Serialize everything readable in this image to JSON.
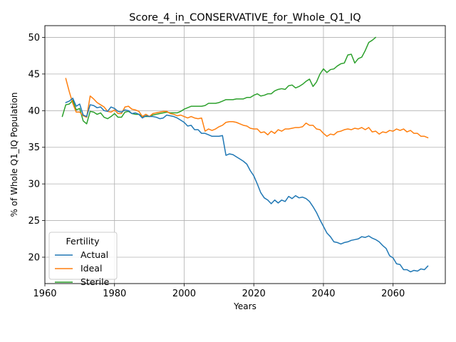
{
  "chart_data": {
    "type": "line",
    "title": "Score_4_in_CONSERVATIVE_for_Whole_Q1_IQ",
    "xlabel": "Years",
    "ylabel": "% of Whole Q1_IQ Population",
    "xlim": [
      1960,
      2075
    ],
    "ylim": [
      16.4,
      51.6
    ],
    "xticks": [
      1960,
      1980,
      2000,
      2020,
      2040,
      2060
    ],
    "yticks": [
      20,
      25,
      30,
      35,
      40,
      45,
      50
    ],
    "grid": true,
    "legend": {
      "title": "Fertility",
      "placement": "lower-left"
    },
    "series": [
      {
        "name": "Actual",
        "color": "#1f77b4",
        "points": [
          [
            1966,
            41.1
          ],
          [
            1967,
            41.3
          ],
          [
            1968,
            41.7
          ],
          [
            1969,
            40.6
          ],
          [
            1970,
            40.9
          ],
          [
            1971,
            39.4
          ],
          [
            1972,
            39.2
          ],
          [
            1973,
            40.8
          ],
          [
            1974,
            40.7
          ],
          [
            1975,
            40.4
          ],
          [
            1976,
            40.5
          ],
          [
            1977,
            40.0
          ],
          [
            1978,
            39.9
          ],
          [
            1979,
            40.5
          ],
          [
            1980,
            40.3
          ],
          [
            1981,
            39.9
          ],
          [
            1982,
            39.8
          ],
          [
            1983,
            40.1
          ],
          [
            1984,
            40.0
          ],
          [
            1985,
            39.6
          ],
          [
            1986,
            39.7
          ],
          [
            1987,
            39.5
          ],
          [
            1988,
            39.0
          ],
          [
            1989,
            39.3
          ],
          [
            1990,
            39.2
          ],
          [
            1991,
            39.2
          ],
          [
            1992,
            39.1
          ],
          [
            1993,
            38.9
          ],
          [
            1994,
            39.0
          ],
          [
            1995,
            39.4
          ],
          [
            1996,
            39.3
          ],
          [
            1997,
            39.2
          ],
          [
            1998,
            39.0
          ],
          [
            1999,
            38.7
          ],
          [
            2000,
            38.4
          ],
          [
            2001,
            37.9
          ],
          [
            2002,
            38.0
          ],
          [
            2003,
            37.4
          ],
          [
            2004,
            37.4
          ],
          [
            2005,
            36.9
          ],
          [
            2006,
            36.9
          ],
          [
            2007,
            36.7
          ],
          [
            2008,
            36.5
          ],
          [
            2009,
            36.5
          ],
          [
            2010,
            36.5
          ],
          [
            2011,
            36.6
          ],
          [
            2012,
            33.9
          ],
          [
            2013,
            34.1
          ],
          [
            2014,
            34.0
          ],
          [
            2015,
            33.7
          ],
          [
            2016,
            33.4
          ],
          [
            2017,
            33.1
          ],
          [
            2018,
            32.7
          ],
          [
            2019,
            31.8
          ],
          [
            2020,
            31.1
          ],
          [
            2021,
            30.0
          ],
          [
            2022,
            28.8
          ],
          [
            2023,
            28.1
          ],
          [
            2024,
            27.8
          ],
          [
            2025,
            27.3
          ],
          [
            2026,
            27.8
          ],
          [
            2027,
            27.4
          ],
          [
            2028,
            27.8
          ],
          [
            2029,
            27.6
          ],
          [
            2030,
            28.3
          ],
          [
            2031,
            28.0
          ],
          [
            2032,
            28.4
          ],
          [
            2033,
            28.1
          ],
          [
            2034,
            28.2
          ],
          [
            2035,
            28.0
          ],
          [
            2036,
            27.6
          ],
          [
            2037,
            26.9
          ],
          [
            2038,
            26.1
          ],
          [
            2039,
            25.1
          ],
          [
            2040,
            24.2
          ],
          [
            2041,
            23.3
          ],
          [
            2042,
            22.8
          ],
          [
            2043,
            22.1
          ],
          [
            2044,
            22.0
          ],
          [
            2045,
            21.8
          ],
          [
            2046,
            22.0
          ],
          [
            2047,
            22.1
          ],
          [
            2048,
            22.3
          ],
          [
            2049,
            22.4
          ],
          [
            2050,
            22.5
          ],
          [
            2051,
            22.8
          ],
          [
            2052,
            22.7
          ],
          [
            2053,
            22.9
          ],
          [
            2054,
            22.6
          ],
          [
            2055,
            22.4
          ],
          [
            2056,
            22.1
          ],
          [
            2057,
            21.6
          ],
          [
            2058,
            21.2
          ],
          [
            2059,
            20.2
          ],
          [
            2060,
            19.9
          ],
          [
            2061,
            19.1
          ],
          [
            2062,
            19.0
          ],
          [
            2063,
            18.3
          ],
          [
            2064,
            18.3
          ],
          [
            2065,
            18.0
          ],
          [
            2066,
            18.2
          ],
          [
            2067,
            18.1
          ],
          [
            2068,
            18.4
          ],
          [
            2069,
            18.3
          ],
          [
            2070,
            18.8
          ]
        ]
      },
      {
        "name": "Ideal",
        "color": "#ff7f0e",
        "points": [
          [
            1966,
            44.4
          ],
          [
            1967,
            42.6
          ],
          [
            1968,
            41.0
          ],
          [
            1969,
            39.8
          ],
          [
            1970,
            39.8
          ],
          [
            1971,
            39.3
          ],
          [
            1972,
            39.1
          ],
          [
            1973,
            42.0
          ],
          [
            1974,
            41.6
          ],
          [
            1975,
            41.1
          ],
          [
            1976,
            40.8
          ],
          [
            1977,
            40.5
          ],
          [
            1978,
            39.9
          ],
          [
            1979,
            39.8
          ],
          [
            1980,
            40.1
          ],
          [
            1981,
            39.6
          ],
          [
            1982,
            39.6
          ],
          [
            1983,
            40.5
          ],
          [
            1984,
            40.6
          ],
          [
            1985,
            40.2
          ],
          [
            1986,
            40.1
          ],
          [
            1987,
            39.9
          ],
          [
            1988,
            39.2
          ],
          [
            1989,
            39.5
          ],
          [
            1990,
            39.2
          ],
          [
            1991,
            39.6
          ],
          [
            1992,
            39.7
          ],
          [
            1993,
            39.8
          ],
          [
            1994,
            39.9
          ],
          [
            1995,
            39.9
          ],
          [
            1996,
            39.6
          ],
          [
            1997,
            39.5
          ],
          [
            1998,
            39.3
          ],
          [
            1999,
            39.4
          ],
          [
            2000,
            39.2
          ],
          [
            2001,
            39.0
          ],
          [
            2002,
            39.2
          ],
          [
            2003,
            39.0
          ],
          [
            2004,
            38.9
          ],
          [
            2005,
            39.0
          ],
          [
            2006,
            37.2
          ],
          [
            2007,
            37.5
          ],
          [
            2008,
            37.3
          ],
          [
            2009,
            37.5
          ],
          [
            2010,
            37.8
          ],
          [
            2011,
            38.0
          ],
          [
            2012,
            38.4
          ],
          [
            2013,
            38.5
          ],
          [
            2014,
            38.5
          ],
          [
            2015,
            38.4
          ],
          [
            2016,
            38.2
          ],
          [
            2017,
            38.0
          ],
          [
            2018,
            37.9
          ],
          [
            2019,
            37.6
          ],
          [
            2020,
            37.5
          ],
          [
            2021,
            37.5
          ],
          [
            2022,
            37.0
          ],
          [
            2023,
            37.1
          ],
          [
            2024,
            36.7
          ],
          [
            2025,
            37.2
          ],
          [
            2026,
            36.9
          ],
          [
            2027,
            37.4
          ],
          [
            2028,
            37.2
          ],
          [
            2029,
            37.5
          ],
          [
            2030,
            37.5
          ],
          [
            2031,
            37.6
          ],
          [
            2032,
            37.7
          ],
          [
            2033,
            37.7
          ],
          [
            2034,
            37.8
          ],
          [
            2035,
            38.3
          ],
          [
            2036,
            38.0
          ],
          [
            2037,
            38.0
          ],
          [
            2038,
            37.5
          ],
          [
            2039,
            37.4
          ],
          [
            2040,
            36.9
          ],
          [
            2041,
            36.5
          ],
          [
            2042,
            36.8
          ],
          [
            2043,
            36.7
          ],
          [
            2044,
            37.1
          ],
          [
            2045,
            37.2
          ],
          [
            2046,
            37.4
          ],
          [
            2047,
            37.5
          ],
          [
            2048,
            37.4
          ],
          [
            2049,
            37.6
          ],
          [
            2050,
            37.5
          ],
          [
            2051,
            37.7
          ],
          [
            2052,
            37.4
          ],
          [
            2053,
            37.7
          ],
          [
            2054,
            37.1
          ],
          [
            2055,
            37.2
          ],
          [
            2056,
            36.8
          ],
          [
            2057,
            37.1
          ],
          [
            2058,
            37.0
          ],
          [
            2059,
            37.3
          ],
          [
            2060,
            37.2
          ],
          [
            2061,
            37.5
          ],
          [
            2062,
            37.3
          ],
          [
            2063,
            37.5
          ],
          [
            2064,
            37.1
          ],
          [
            2065,
            37.3
          ],
          [
            2066,
            36.9
          ],
          [
            2067,
            36.9
          ],
          [
            2068,
            36.5
          ],
          [
            2069,
            36.5
          ],
          [
            2070,
            36.3
          ]
        ]
      },
      {
        "name": "Sterile",
        "color": "#2ca02c",
        "points": [
          [
            1965,
            39.2
          ],
          [
            1966,
            40.8
          ],
          [
            1967,
            40.9
          ],
          [
            1968,
            41.4
          ],
          [
            1969,
            40.1
          ],
          [
            1970,
            40.3
          ],
          [
            1971,
            38.6
          ],
          [
            1972,
            38.2
          ],
          [
            1973,
            39.9
          ],
          [
            1974,
            39.8
          ],
          [
            1975,
            39.5
          ],
          [
            1976,
            39.7
          ],
          [
            1977,
            39.1
          ],
          [
            1978,
            38.9
          ],
          [
            1979,
            39.2
          ],
          [
            1980,
            39.6
          ],
          [
            1981,
            39.1
          ],
          [
            1982,
            39.1
          ],
          [
            1983,
            39.8
          ],
          [
            1984,
            39.9
          ],
          [
            1985,
            39.6
          ],
          [
            1986,
            39.5
          ],
          [
            1987,
            39.5
          ],
          [
            1988,
            39.2
          ],
          [
            1989,
            39.2
          ],
          [
            1990,
            39.2
          ],
          [
            1991,
            39.4
          ],
          [
            1992,
            39.5
          ],
          [
            1993,
            39.6
          ],
          [
            1994,
            39.7
          ],
          [
            1995,
            39.8
          ],
          [
            1996,
            39.7
          ],
          [
            1997,
            39.7
          ],
          [
            1998,
            39.7
          ],
          [
            1999,
            39.9
          ],
          [
            2000,
            40.2
          ],
          [
            2001,
            40.4
          ],
          [
            2002,
            40.6
          ],
          [
            2003,
            40.6
          ],
          [
            2004,
            40.6
          ],
          [
            2005,
            40.6
          ],
          [
            2006,
            40.7
          ],
          [
            2007,
            41.0
          ],
          [
            2008,
            41.0
          ],
          [
            2009,
            41.0
          ],
          [
            2010,
            41.1
          ],
          [
            2011,
            41.3
          ],
          [
            2012,
            41.5
          ],
          [
            2013,
            41.5
          ],
          [
            2014,
            41.5
          ],
          [
            2015,
            41.6
          ],
          [
            2016,
            41.6
          ],
          [
            2017,
            41.6
          ],
          [
            2018,
            41.8
          ],
          [
            2019,
            41.8
          ],
          [
            2020,
            42.1
          ],
          [
            2021,
            42.3
          ],
          [
            2022,
            42.0
          ],
          [
            2023,
            42.1
          ],
          [
            2024,
            42.3
          ],
          [
            2025,
            42.3
          ],
          [
            2026,
            42.7
          ],
          [
            2027,
            42.9
          ],
          [
            2028,
            43.0
          ],
          [
            2029,
            42.9
          ],
          [
            2030,
            43.4
          ],
          [
            2031,
            43.5
          ],
          [
            2032,
            43.1
          ],
          [
            2033,
            43.3
          ],
          [
            2034,
            43.6
          ],
          [
            2035,
            44.0
          ],
          [
            2036,
            44.3
          ],
          [
            2037,
            43.3
          ],
          [
            2038,
            43.9
          ],
          [
            2039,
            45.0
          ],
          [
            2040,
            45.7
          ],
          [
            2041,
            45.2
          ],
          [
            2042,
            45.6
          ],
          [
            2043,
            45.7
          ],
          [
            2044,
            46.1
          ],
          [
            2045,
            46.4
          ],
          [
            2046,
            46.5
          ],
          [
            2047,
            47.6
          ],
          [
            2048,
            47.7
          ],
          [
            2049,
            46.5
          ],
          [
            2050,
            47.1
          ],
          [
            2051,
            47.3
          ],
          [
            2052,
            48.2
          ],
          [
            2053,
            49.3
          ],
          [
            2054,
            49.6
          ],
          [
            2055,
            50.0
          ]
        ]
      }
    ]
  }
}
